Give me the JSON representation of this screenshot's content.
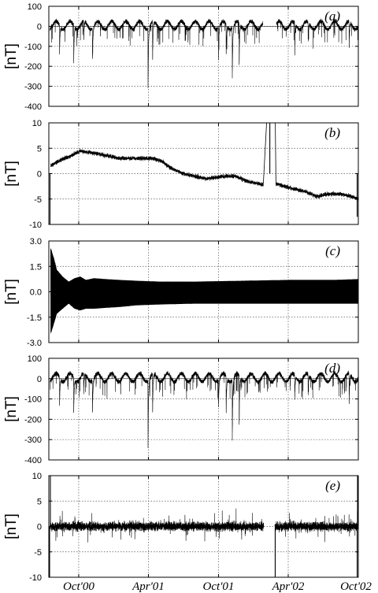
{
  "chart_data": {
    "type": "line",
    "x_axis": {
      "range": [
        "2000-07-15",
        "2002-10-01"
      ],
      "ticks": [
        {
          "date": "2000-10-01",
          "label": "Oct'00"
        },
        {
          "date": "2001-04-01",
          "label": "Apr'01"
        },
        {
          "date": "2001-10-01",
          "label": "Oct'01"
        },
        {
          "date": "2002-04-01",
          "label": "Apr'02"
        },
        {
          "date": "2002-10-01",
          "label": "Oct'02"
        }
      ]
    },
    "grid": true,
    "panels": [
      {
        "label": "(a)",
        "ylabel": "[nT]",
        "ylim": [
          -400,
          100
        ],
        "yticks": [
          100,
          0,
          -100,
          -200,
          -300,
          -400
        ],
        "ytick_labels": [
          "100",
          "0",
          "-100",
          "-200",
          "-300",
          "-400"
        ],
        "series": {
          "kind": "dst",
          "base": 5,
          "noise": 14,
          "gaps": [
            [
              "2002-01-25",
              "2002-03-01"
            ]
          ],
          "dips": [
            {
              "date": "2000-08-12",
              "depth": 140
            },
            {
              "date": "2000-09-18",
              "depth": 180
            },
            {
              "date": "2000-10-14",
              "depth": 100
            },
            {
              "date": "2000-11-06",
              "depth": 159
            },
            {
              "date": "2001-03-31",
              "depth": 300
            },
            {
              "date": "2001-04-12",
              "depth": 190
            },
            {
              "date": "2001-10-01",
              "depth": 120
            },
            {
              "date": "2001-10-21",
              "depth": 150
            },
            {
              "date": "2001-11-06",
              "depth": 260
            },
            {
              "date": "2001-11-24",
              "depth": 215
            },
            {
              "date": "2002-04-18",
              "depth": 120
            },
            {
              "date": "2002-05-23",
              "depth": 100
            },
            {
              "date": "2002-09-07",
              "depth": 130
            }
          ]
        }
      },
      {
        "label": "(b)",
        "ylabel": "[nT]",
        "ylim": [
          -10,
          10
        ],
        "yticks": [
          10,
          5,
          0,
          -5,
          -10
        ],
        "ytick_labels": [
          "10",
          "5",
          "0",
          "-5",
          "-10"
        ],
        "series": {
          "kind": "trend",
          "noise": 0.55,
          "points": [
            [
              "2000-07-20",
              1.5
            ],
            [
              "2000-08-10",
              2.5
            ],
            [
              "2000-09-10",
              3.5
            ],
            [
              "2000-10-05",
              4.5
            ],
            [
              "2000-11-15",
              4.0
            ],
            [
              "2000-12-15",
              3.5
            ],
            [
              "2001-01-15",
              3.0
            ],
            [
              "2001-02-20",
              3.0
            ],
            [
              "2001-03-25",
              3.0
            ],
            [
              "2001-04-10",
              3.0
            ],
            [
              "2001-05-05",
              2.5
            ],
            [
              "2001-06-01",
              1.0
            ],
            [
              "2001-07-01",
              0.0
            ],
            [
              "2001-08-01",
              -0.5
            ],
            [
              "2001-09-01",
              -1.0
            ],
            [
              "2001-10-15",
              -0.5
            ],
            [
              "2001-11-15",
              -0.5
            ],
            [
              "2001-12-15",
              -1.5
            ],
            [
              "2002-01-15",
              -2.0
            ],
            [
              "2002-02-10",
              -2.5
            ],
            [
              "2002-03-01",
              -2.0
            ],
            [
              "2002-04-15",
              -3.0
            ],
            [
              "2002-05-15",
              -3.5
            ],
            [
              "2002-06-15",
              -4.5
            ],
            [
              "2002-07-15",
              -4.0
            ],
            [
              "2002-08-15",
              -4.0
            ],
            [
              "2002-09-15",
              -4.5
            ],
            [
              "2002-09-30",
              -5.0
            ]
          ],
          "offscale_segments": [
            [
              [
                "2002-01-26",
                -2.0
              ],
              [
                "2002-02-05",
                12.0
              ]
            ],
            [
              [
                "2002-02-26",
                12.0
              ],
              [
                "2002-02-28",
                -2.0
              ]
            ]
          ],
          "spikes": [
            {
              "date": "2000-07-18",
              "value": -10
            },
            {
              "date": "2002-02-12",
              "value": 10
            },
            {
              "date": "2002-09-28",
              "value": -8.5
            }
          ]
        }
      },
      {
        "label": "(c)",
        "ylabel": "[nT]",
        "ylim": [
          -3.0,
          3.0
        ],
        "yticks": [
          3.0,
          1.5,
          0.0,
          -1.5,
          -3.0
        ],
        "ytick_labels": [
          "3.0",
          "1.5",
          "0.0",
          "-1.5",
          "-3.0"
        ],
        "series": {
          "kind": "envelope",
          "points": [
            [
              "2000-07-20",
              2.6,
              -2.5
            ],
            [
              "2000-07-28",
              2.0,
              -1.9
            ],
            [
              "2000-08-05",
              1.3,
              -1.3
            ],
            [
              "2000-08-20",
              0.9,
              -1.0
            ],
            [
              "2000-09-05",
              0.6,
              -0.7
            ],
            [
              "2000-09-20",
              0.8,
              -1.0
            ],
            [
              "2000-10-05",
              0.9,
              -1.1
            ],
            [
              "2000-10-20",
              0.7,
              -1.0
            ],
            [
              "2000-11-10",
              0.8,
              -1.0
            ],
            [
              "2000-12-10",
              0.75,
              -0.95
            ],
            [
              "2001-01-15",
              0.7,
              -0.9
            ],
            [
              "2001-03-01",
              0.65,
              -0.8
            ],
            [
              "2001-05-01",
              0.6,
              -0.75
            ],
            [
              "2001-08-01",
              0.6,
              -0.7
            ],
            [
              "2001-12-01",
              0.65,
              -0.7
            ],
            [
              "2002-04-01",
              0.7,
              -0.7
            ],
            [
              "2002-08-01",
              0.7,
              -0.7
            ],
            [
              "2002-10-01",
              0.75,
              -0.7
            ]
          ]
        }
      },
      {
        "label": "(d)",
        "ylabel": "[nT]",
        "ylim": [
          -400,
          100
        ],
        "yticks": [
          100,
          0,
          -100,
          -200,
          -300,
          -400
        ],
        "ytick_labels": [
          "100",
          "0",
          "-100",
          "-200",
          "-300",
          "-400"
        ],
        "series": {
          "kind": "dst",
          "base": 5,
          "noise": 14,
          "gaps": [],
          "dips": [
            {
              "date": "2000-08-12",
              "depth": 140
            },
            {
              "date": "2000-09-18",
              "depth": 180
            },
            {
              "date": "2000-10-14",
              "depth": 100
            },
            {
              "date": "2000-11-06",
              "depth": 159
            },
            {
              "date": "2001-03-31",
              "depth": 330
            },
            {
              "date": "2001-04-12",
              "depth": 190
            },
            {
              "date": "2001-10-01",
              "depth": 140
            },
            {
              "date": "2001-10-21",
              "depth": 180
            },
            {
              "date": "2001-11-06",
              "depth": 290
            },
            {
              "date": "2001-11-24",
              "depth": 240
            },
            {
              "date": "2002-04-18",
              "depth": 120
            },
            {
              "date": "2002-05-23",
              "depth": 100
            },
            {
              "date": "2002-09-07",
              "depth": 150
            }
          ]
        }
      },
      {
        "label": "(e)",
        "ylabel": "[nT]",
        "ylim": [
          -10,
          10
        ],
        "yticks": [
          10,
          5,
          0,
          -5,
          -10
        ],
        "ytick_labels": [
          "10",
          "5",
          "0",
          "-5",
          "-10"
        ],
        "series": {
          "kind": "residual",
          "noise": 1.1,
          "gaps": [
            [
              "2002-01-27",
              "2002-02-25"
            ]
          ],
          "spikes": [
            {
              "date": "2000-07-17",
              "value": -10
            },
            {
              "date": "2000-07-19",
              "value": 10
            },
            {
              "date": "2002-02-26",
              "value": -10
            },
            {
              "date": "2002-09-28",
              "value": -10
            },
            {
              "date": "2002-09-29",
              "value": 10
            }
          ]
        }
      }
    ]
  }
}
